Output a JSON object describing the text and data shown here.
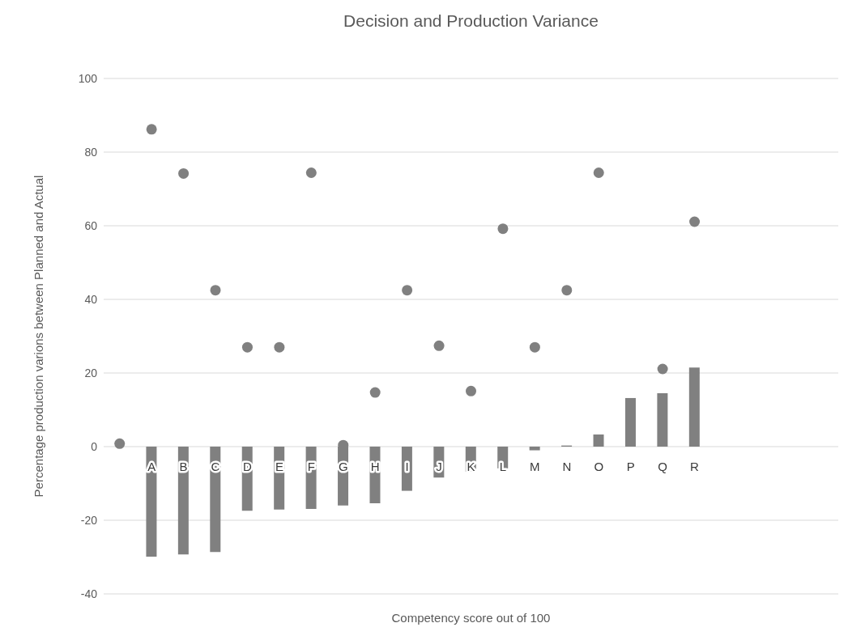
{
  "chart_data": {
    "type": "bar",
    "title": "Decision and Production Variance",
    "xlabel": "Competency score out of 100",
    "ylabel": "Percentage production varions between Planned and Actual",
    "categories": [
      null,
      "A",
      "B",
      "C",
      "D",
      "E",
      "F",
      "G",
      "H",
      "I",
      "J",
      "K",
      "L",
      "M",
      "N",
      "O",
      "P",
      "Q",
      "R",
      null,
      null,
      null,
      null
    ],
    "series": [
      {
        "color": "#808080",
        "values": [
          null,
          -29.9,
          -29.3,
          -28.6,
          -17.4,
          -17.1,
          -16.9,
          -16.0,
          -15.4,
          -12.0,
          -8.4,
          -6.8,
          -5.9,
          -1.0,
          0.3,
          3.3,
          13.2,
          14.5,
          21.5,
          null,
          null,
          null,
          null
        ]
      },
      {
        "type": "scatter",
        "color": "#808080",
        "marker": "circle",
        "values": [
          0.8,
          86.2,
          74.2,
          42.5,
          27.0,
          27.0,
          74.4,
          0.4,
          14.7,
          42.5,
          27.4,
          15.1,
          59.2,
          27.0,
          42.5,
          74.4,
          null,
          21.1,
          61.1,
          null,
          null,
          null,
          null
        ]
      }
    ],
    "ylim": [
      -40,
      100
    ],
    "yticks": [
      -40,
      -20,
      0,
      20,
      40,
      60,
      80,
      100
    ],
    "grid": "y",
    "legend": false
  }
}
